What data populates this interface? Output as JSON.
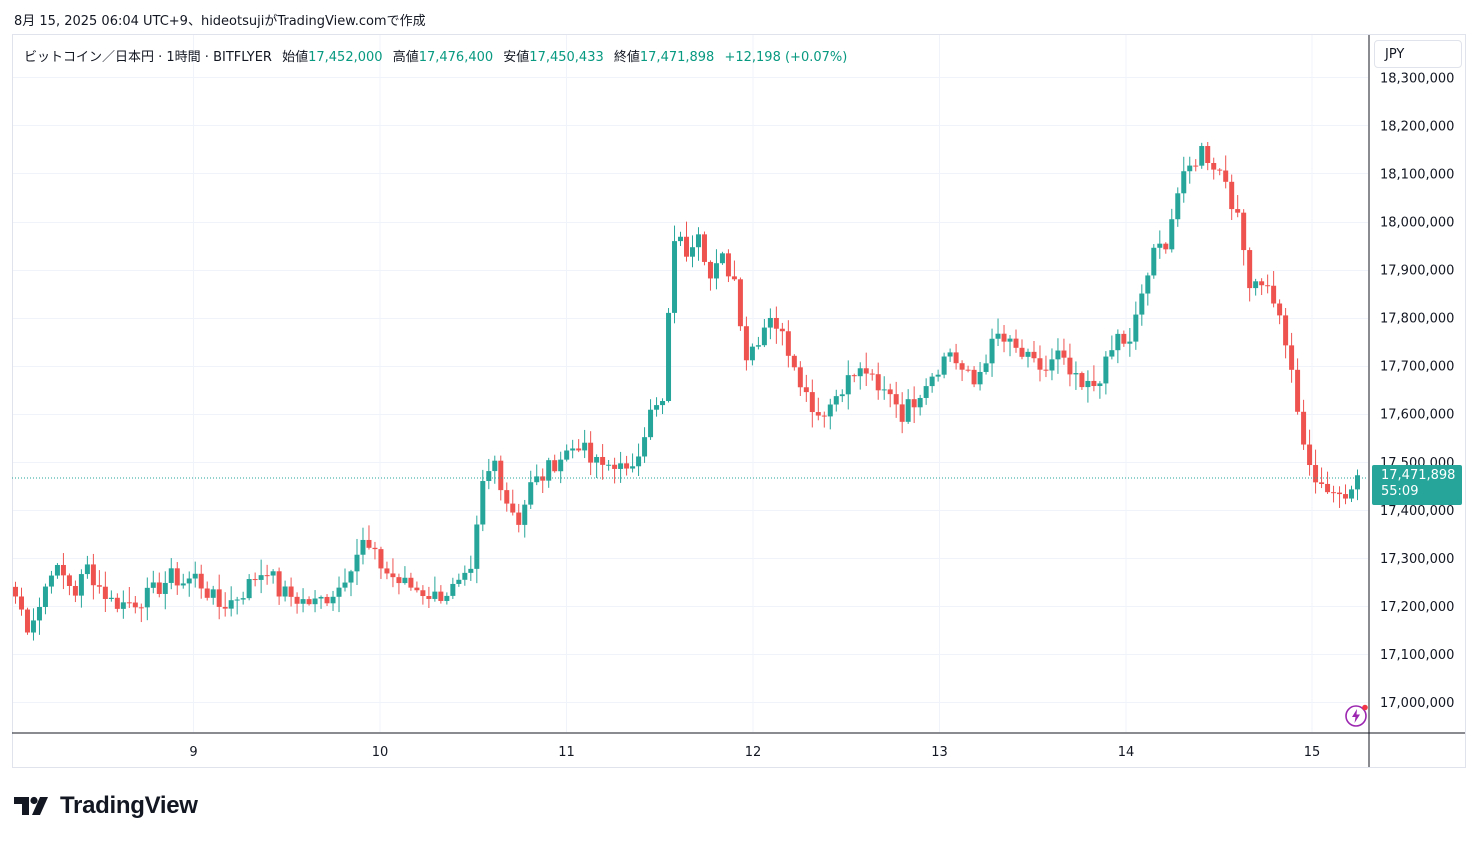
{
  "caption": "8月 15, 2025 06:04 UTC+9、hideotsujiがTradingView.comで作成",
  "legend": {
    "symbol": "ビットコイン／日本円 · 1時間 · BITFLYER",
    "open_label": "始値",
    "open": "17,452,000",
    "high_label": "高値",
    "high": "17,476,400",
    "low_label": "安値",
    "low": "17,450,433",
    "close_label": "終値",
    "close": "17,471,898",
    "change": "+12,198 (+0.07%)"
  },
  "currency": "JPY",
  "price_tag": {
    "price": "17,471,898",
    "countdown": "55:09"
  },
  "brand": "TradingView",
  "colors": {
    "up": "#26a69a",
    "down": "#ef5350",
    "grid": "#f0f3fa",
    "text": "#131722",
    "accent": "#089981"
  },
  "chart_data": {
    "type": "candlestick",
    "interval": "1時間",
    "y_ticks": [
      17000000,
      17100000,
      17200000,
      17300000,
      17400000,
      17500000,
      17600000,
      17700000,
      17800000,
      17900000,
      18000000,
      18100000,
      18200000,
      18300000
    ],
    "y_tick_labels": [
      "17,000,000",
      "17,100,000",
      "17,200,000",
      "17,300,000",
      "17,400,000",
      "17,500,000",
      "17,600,000",
      "17,700,000",
      "17,800,000",
      "17,900,000",
      "18,000,000",
      "18,100,000",
      "18,200,000",
      "18,300,000"
    ],
    "x_tick_labels": [
      "9",
      "10",
      "11",
      "12",
      "13",
      "14",
      "15"
    ],
    "last_price": 17471898,
    "anchors": [
      [
        0,
        17220000
      ],
      [
        2,
        17160000
      ],
      [
        4,
        17200000
      ],
      [
        6,
        17280000
      ],
      [
        8,
        17260000
      ],
      [
        10,
        17230000
      ],
      [
        12,
        17280000
      ],
      [
        14,
        17240000
      ],
      [
        16,
        17210000
      ],
      [
        18,
        17205000
      ],
      [
        20,
        17210000
      ],
      [
        22,
        17220000
      ],
      [
        24,
        17240000
      ],
      [
        26,
        17260000
      ],
      [
        28,
        17250000
      ],
      [
        30,
        17260000
      ],
      [
        32,
        17230000
      ],
      [
        34,
        17200000
      ],
      [
        36,
        17210000
      ],
      [
        38,
        17230000
      ],
      [
        40,
        17260000
      ],
      [
        42,
        17280000
      ],
      [
        44,
        17230000
      ],
      [
        46,
        17220000
      ],
      [
        48,
        17210000
      ],
      [
        50,
        17205000
      ],
      [
        52,
        17220000
      ],
      [
        54,
        17240000
      ],
      [
        56,
        17290000
      ],
      [
        58,
        17330000
      ],
      [
        60,
        17300000
      ],
      [
        62,
        17270000
      ],
      [
        64,
        17250000
      ],
      [
        66,
        17240000
      ],
      [
        68,
        17230000
      ],
      [
        70,
        17220000
      ],
      [
        72,
        17230000
      ],
      [
        74,
        17240000
      ],
      [
        76,
        17260000
      ],
      [
        78,
        17450000
      ],
      [
        80,
        17500000
      ],
      [
        82,
        17420000
      ],
      [
        84,
        17380000
      ],
      [
        86,
        17450000
      ],
      [
        88,
        17470000
      ],
      [
        90,
        17500000
      ],
      [
        92,
        17520000
      ],
      [
        94,
        17540000
      ],
      [
        96,
        17500000
      ],
      [
        98,
        17490000
      ],
      [
        100,
        17500000
      ],
      [
        102,
        17470000
      ],
      [
        104,
        17530000
      ],
      [
        106,
        17600000
      ],
      [
        108,
        17620000
      ],
      [
        110,
        17970000
      ],
      [
        112,
        17940000
      ],
      [
        114,
        17990000
      ],
      [
        116,
        17880000
      ],
      [
        118,
        17920000
      ],
      [
        120,
        17880000
      ],
      [
        122,
        17720000
      ],
      [
        124,
        17760000
      ],
      [
        126,
        17810000
      ],
      [
        128,
        17760000
      ],
      [
        130,
        17710000
      ],
      [
        132,
        17640000
      ],
      [
        134,
        17600000
      ],
      [
        136,
        17620000
      ],
      [
        138,
        17660000
      ],
      [
        140,
        17680000
      ],
      [
        142,
        17690000
      ],
      [
        144,
        17640000
      ],
      [
        146,
        17650000
      ],
      [
        148,
        17600000
      ],
      [
        150,
        17630000
      ],
      [
        152,
        17670000
      ],
      [
        154,
        17700000
      ],
      [
        156,
        17730000
      ],
      [
        158,
        17690000
      ],
      [
        160,
        17660000
      ],
      [
        162,
        17720000
      ],
      [
        164,
        17760000
      ],
      [
        166,
        17740000
      ],
      [
        168,
        17720000
      ],
      [
        170,
        17700000
      ],
      [
        172,
        17690000
      ],
      [
        174,
        17720000
      ],
      [
        176,
        17680000
      ],
      [
        178,
        17650000
      ],
      [
        180,
        17660000
      ],
      [
        182,
        17700000
      ],
      [
        184,
        17760000
      ],
      [
        186,
        17740000
      ],
      [
        188,
        17850000
      ],
      [
        190,
        17930000
      ],
      [
        192,
        17960000
      ],
      [
        194,
        18060000
      ],
      [
        196,
        18110000
      ],
      [
        198,
        18150000
      ],
      [
        200,
        18120000
      ],
      [
        202,
        18090000
      ],
      [
        204,
        18000000
      ],
      [
        206,
        17880000
      ],
      [
        208,
        17880000
      ],
      [
        210,
        17840000
      ],
      [
        212,
        17750000
      ],
      [
        214,
        17600000
      ],
      [
        216,
        17480000
      ],
      [
        218,
        17460000
      ],
      [
        220,
        17420000
      ],
      [
        222,
        17440000
      ],
      [
        224,
        17471898
      ]
    ]
  }
}
